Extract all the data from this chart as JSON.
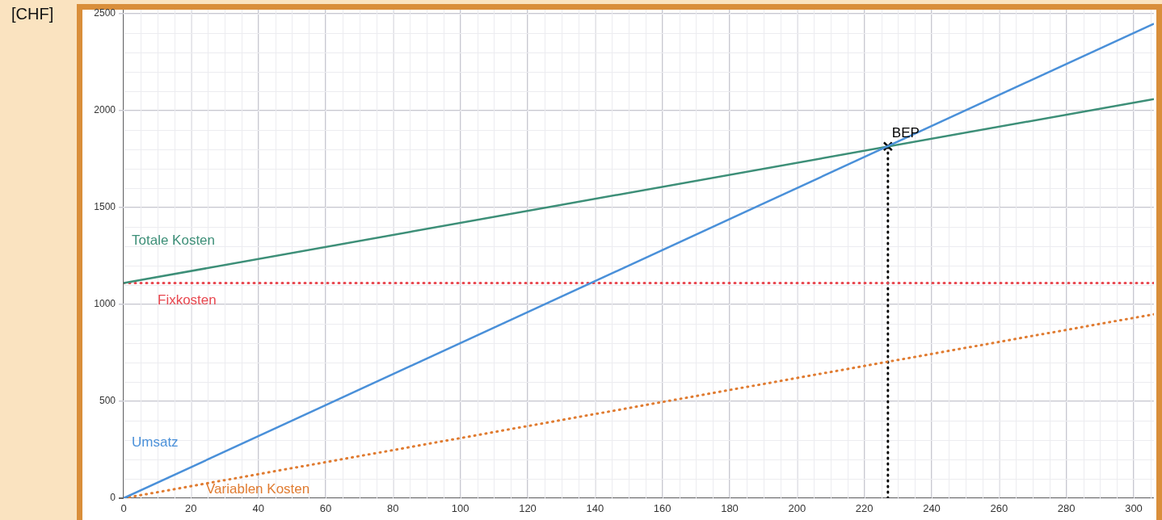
{
  "chart_data": {
    "type": "line",
    "ylabel": "[CHF]",
    "xlim": [
      0,
      306
    ],
    "ylim": [
      0,
      2520
    ],
    "xticks": [
      0,
      20,
      40,
      60,
      80,
      100,
      120,
      140,
      160,
      180,
      200,
      220,
      240,
      260,
      280,
      300
    ],
    "yticks": [
      0,
      500,
      1000,
      1500,
      2000,
      2500
    ],
    "grid": true,
    "legend": false,
    "marker": "none",
    "series": [
      {
        "name": "Umsatz",
        "color": "#4a90d9",
        "x": [
          0,
          306
        ],
        "values": [
          0,
          2448
        ],
        "line_style": "solid"
      },
      {
        "name": "Totale Kosten",
        "color": "#3d8f78",
        "x": [
          0,
          306
        ],
        "values": [
          1110,
          2059
        ],
        "line_style": "solid"
      },
      {
        "name": "Fixkosten",
        "color": "#e8474f",
        "x": [
          0,
          306
        ],
        "values": [
          1110,
          1110
        ],
        "line_style": "dotted"
      },
      {
        "name": "Variablen Kosten",
        "color": "#e07b30",
        "x": [
          0,
          306
        ],
        "values": [
          0,
          949
        ],
        "line_style": "dotted"
      },
      {
        "name": "BEP",
        "type": "scatter",
        "color": "#000000",
        "x": [
          227
        ],
        "values": [
          1815
        ],
        "marker": "cross"
      },
      {
        "color": "#000000",
        "x": [
          227,
          227
        ],
        "values": [
          0,
          1815
        ],
        "line_style": "dotted"
      }
    ]
  }
}
